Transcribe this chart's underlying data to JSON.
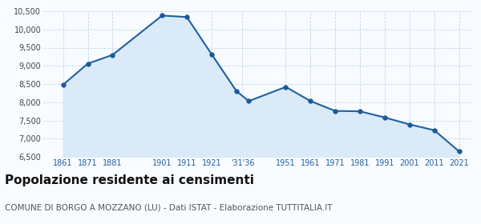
{
  "years": [
    1861,
    1871,
    1881,
    1901,
    1911,
    1921,
    1931,
    1936,
    1951,
    1961,
    1971,
    1981,
    1991,
    2001,
    2011,
    2021
  ],
  "population": [
    8480,
    9060,
    9300,
    10380,
    10340,
    9320,
    8310,
    8030,
    8420,
    8030,
    7760,
    7750,
    7580,
    7390,
    7230,
    6650
  ],
  "x_tick_labels": [
    "1861",
    "1871",
    "1881",
    "1901",
    "1911",
    "1921",
    "'31'36",
    "1951",
    "1961",
    "1971",
    "1981",
    "1991",
    "2001",
    "2011",
    "2021"
  ],
  "x_tick_positions": [
    1861,
    1871,
    1881,
    1901,
    1911,
    1921,
    1933.5,
    1951,
    1961,
    1971,
    1981,
    1991,
    2001,
    2011,
    2021
  ],
  "ylim": [
    6500,
    10500
  ],
  "yticks": [
    6500,
    7000,
    7500,
    8000,
    8500,
    9000,
    9500,
    10000,
    10500
  ],
  "line_color": "#2060a0",
  "fill_color": "#daeaf8",
  "marker_color": "#1a5a9a",
  "background_color": "#f8fbff",
  "grid_color": "#c0d8ec",
  "title": "Popolazione residente ai censimenti",
  "subtitle": "COMUNE DI BORGO A MOZZANO (LU) - Dati ISTAT - Elaborazione TUTTITALIA.IT",
  "title_fontsize": 11,
  "subtitle_fontsize": 7.5,
  "tick_fontsize": 7,
  "line_width": 1.5,
  "marker_size": 4,
  "xlim": [
    1853,
    2026
  ]
}
